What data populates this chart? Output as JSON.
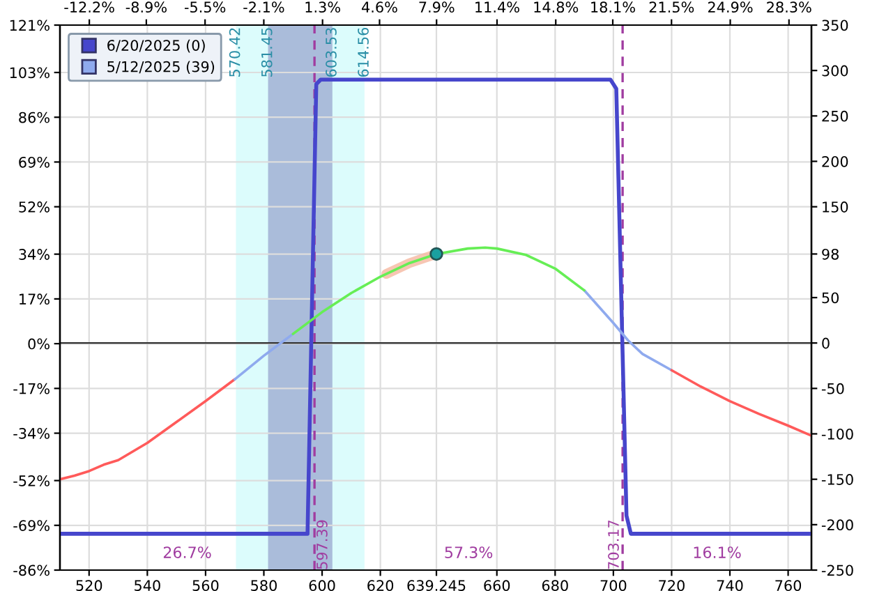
{
  "chart_data": {
    "type": "line",
    "xlim": [
      510,
      768
    ],
    "xticks": [
      520,
      540,
      560,
      580,
      600,
      620,
      {
        "value": 639.245,
        "label": "639.245"
      },
      660,
      680,
      700,
      720,
      740,
      760
    ],
    "x2lim": [
      -13.9,
      29.6
    ],
    "x2ticks": [
      {
        "value": -12.2,
        "label": "-12.2%"
      },
      {
        "value": -8.9,
        "label": "-8.9%"
      },
      {
        "value": -5.5,
        "label": "-5.5%"
      },
      {
        "value": -2.1,
        "label": "-2.1%"
      },
      {
        "value": 1.3,
        "label": "1.3%"
      },
      {
        "value": 4.6,
        "label": "4.6%"
      },
      {
        "value": 7.9,
        "label": "7.9%"
      },
      {
        "value": 11.4,
        "label": "11.4%"
      },
      {
        "value": 14.8,
        "label": "14.8%"
      },
      {
        "value": 18.1,
        "label": "18.1%"
      },
      {
        "value": 21.5,
        "label": "21.5%"
      },
      {
        "value": 24.9,
        "label": "24.9%"
      },
      {
        "value": 28.3,
        "label": "28.3%"
      }
    ],
    "ylim": [
      -250,
      350
    ],
    "yticks": [
      350,
      300,
      250,
      200,
      150,
      98,
      50,
      0,
      -50,
      -100,
      -150,
      -200,
      -250
    ],
    "y2lim": [
      -86,
      121
    ],
    "y2ticks": [
      {
        "value": 121,
        "label": "121%"
      },
      {
        "value": 103,
        "label": "103%"
      },
      {
        "value": 86,
        "label": "86%"
      },
      {
        "value": 69,
        "label": "69%"
      },
      {
        "value": 52,
        "label": "52%"
      },
      {
        "value": 34,
        "label": "34%"
      },
      {
        "value": 17,
        "label": "17%"
      },
      {
        "value": 0,
        "label": "0%"
      },
      {
        "value": -17,
        "label": "-17%"
      },
      {
        "value": -34,
        "label": "-34%"
      },
      {
        "value": -52,
        "label": "-52%"
      },
      {
        "value": -69,
        "label": "-69%"
      },
      {
        "value": -86,
        "label": "-86%"
      }
    ],
    "grid": true,
    "legend": "top left",
    "line_style": "solid",
    "series": [
      {
        "name": "6/20/2025 (0)",
        "color": "#4646cc",
        "x": [
          510,
          595,
          598,
          599.5,
          699,
          701,
          704.5,
          706,
          768
        ],
        "values": [
          -210,
          -210,
          285,
          290,
          290,
          280,
          -190,
          -210,
          -210
        ]
      },
      {
        "color": "#ff5a5a",
        "x": [
          510,
          515,
          520,
          525,
          530,
          540,
          550,
          560,
          570
        ],
        "values": [
          -150,
          -146,
          -141,
          -134,
          -129,
          -110,
          -87,
          -64,
          -40
        ]
      },
      {
        "name": "5/12/2025 (39)",
        "color": "#8faaee",
        "x": [
          570,
          580,
          585,
          590,
          640,
          690,
          700,
          705,
          710,
          720
        ],
        "values": [
          -40,
          -14,
          -2,
          10,
          null,
          58,
          22,
          3,
          -12,
          -30
        ]
      },
      {
        "color": "#66ee55",
        "x": [
          590,
          600,
          610,
          620,
          630,
          639.245,
          650,
          656,
          660,
          670,
          680,
          690
        ],
        "values": [
          10,
          34,
          55,
          73,
          88,
          98,
          104,
          105,
          104,
          97,
          82,
          58
        ]
      },
      {
        "color": "#ff5a5a",
        "x": [
          720,
          730,
          740,
          750,
          760,
          768
        ],
        "values": [
          -30,
          -48,
          -64,
          -78,
          -91,
          -102
        ]
      },
      {
        "color": "#f5b8a0",
        "x": [
          622,
          630,
          639.245
        ],
        "values": [
          76,
          88,
          98
        ]
      },
      {
        "type": "scatter",
        "marker": "circle",
        "color": "#1aa0a0",
        "x": [
          639.245
        ],
        "values": [
          98
        ]
      }
    ],
    "ref_lines": [
      {
        "axis": "x",
        "value": 597.39,
        "label": "597.39",
        "color": "#a03ca0",
        "line_style": "dashed"
      },
      {
        "axis": "x",
        "value": 703.17,
        "label": "703.17",
        "color": "#a03ca0",
        "line_style": "dashed"
      }
    ],
    "bands": [
      {
        "axis": "x",
        "from": 570.42,
        "to": 614.56,
        "color": "#dcfcfc"
      },
      {
        "axis": "x",
        "from": 581.45,
        "to": 603.53,
        "color": "#aabcda"
      }
    ],
    "annotations": [
      {
        "text": "570.42",
        "x": 570.42,
        "y": 320
      },
      {
        "text": "581.45",
        "x": 581.45,
        "y": 320
      },
      {
        "text": "603.53",
        "x": 603.53,
        "y": 320
      },
      {
        "text": "614.56",
        "x": 614.56,
        "y": 320
      },
      "26.7%",
      "57.3%",
      "16.1%"
    ]
  }
}
